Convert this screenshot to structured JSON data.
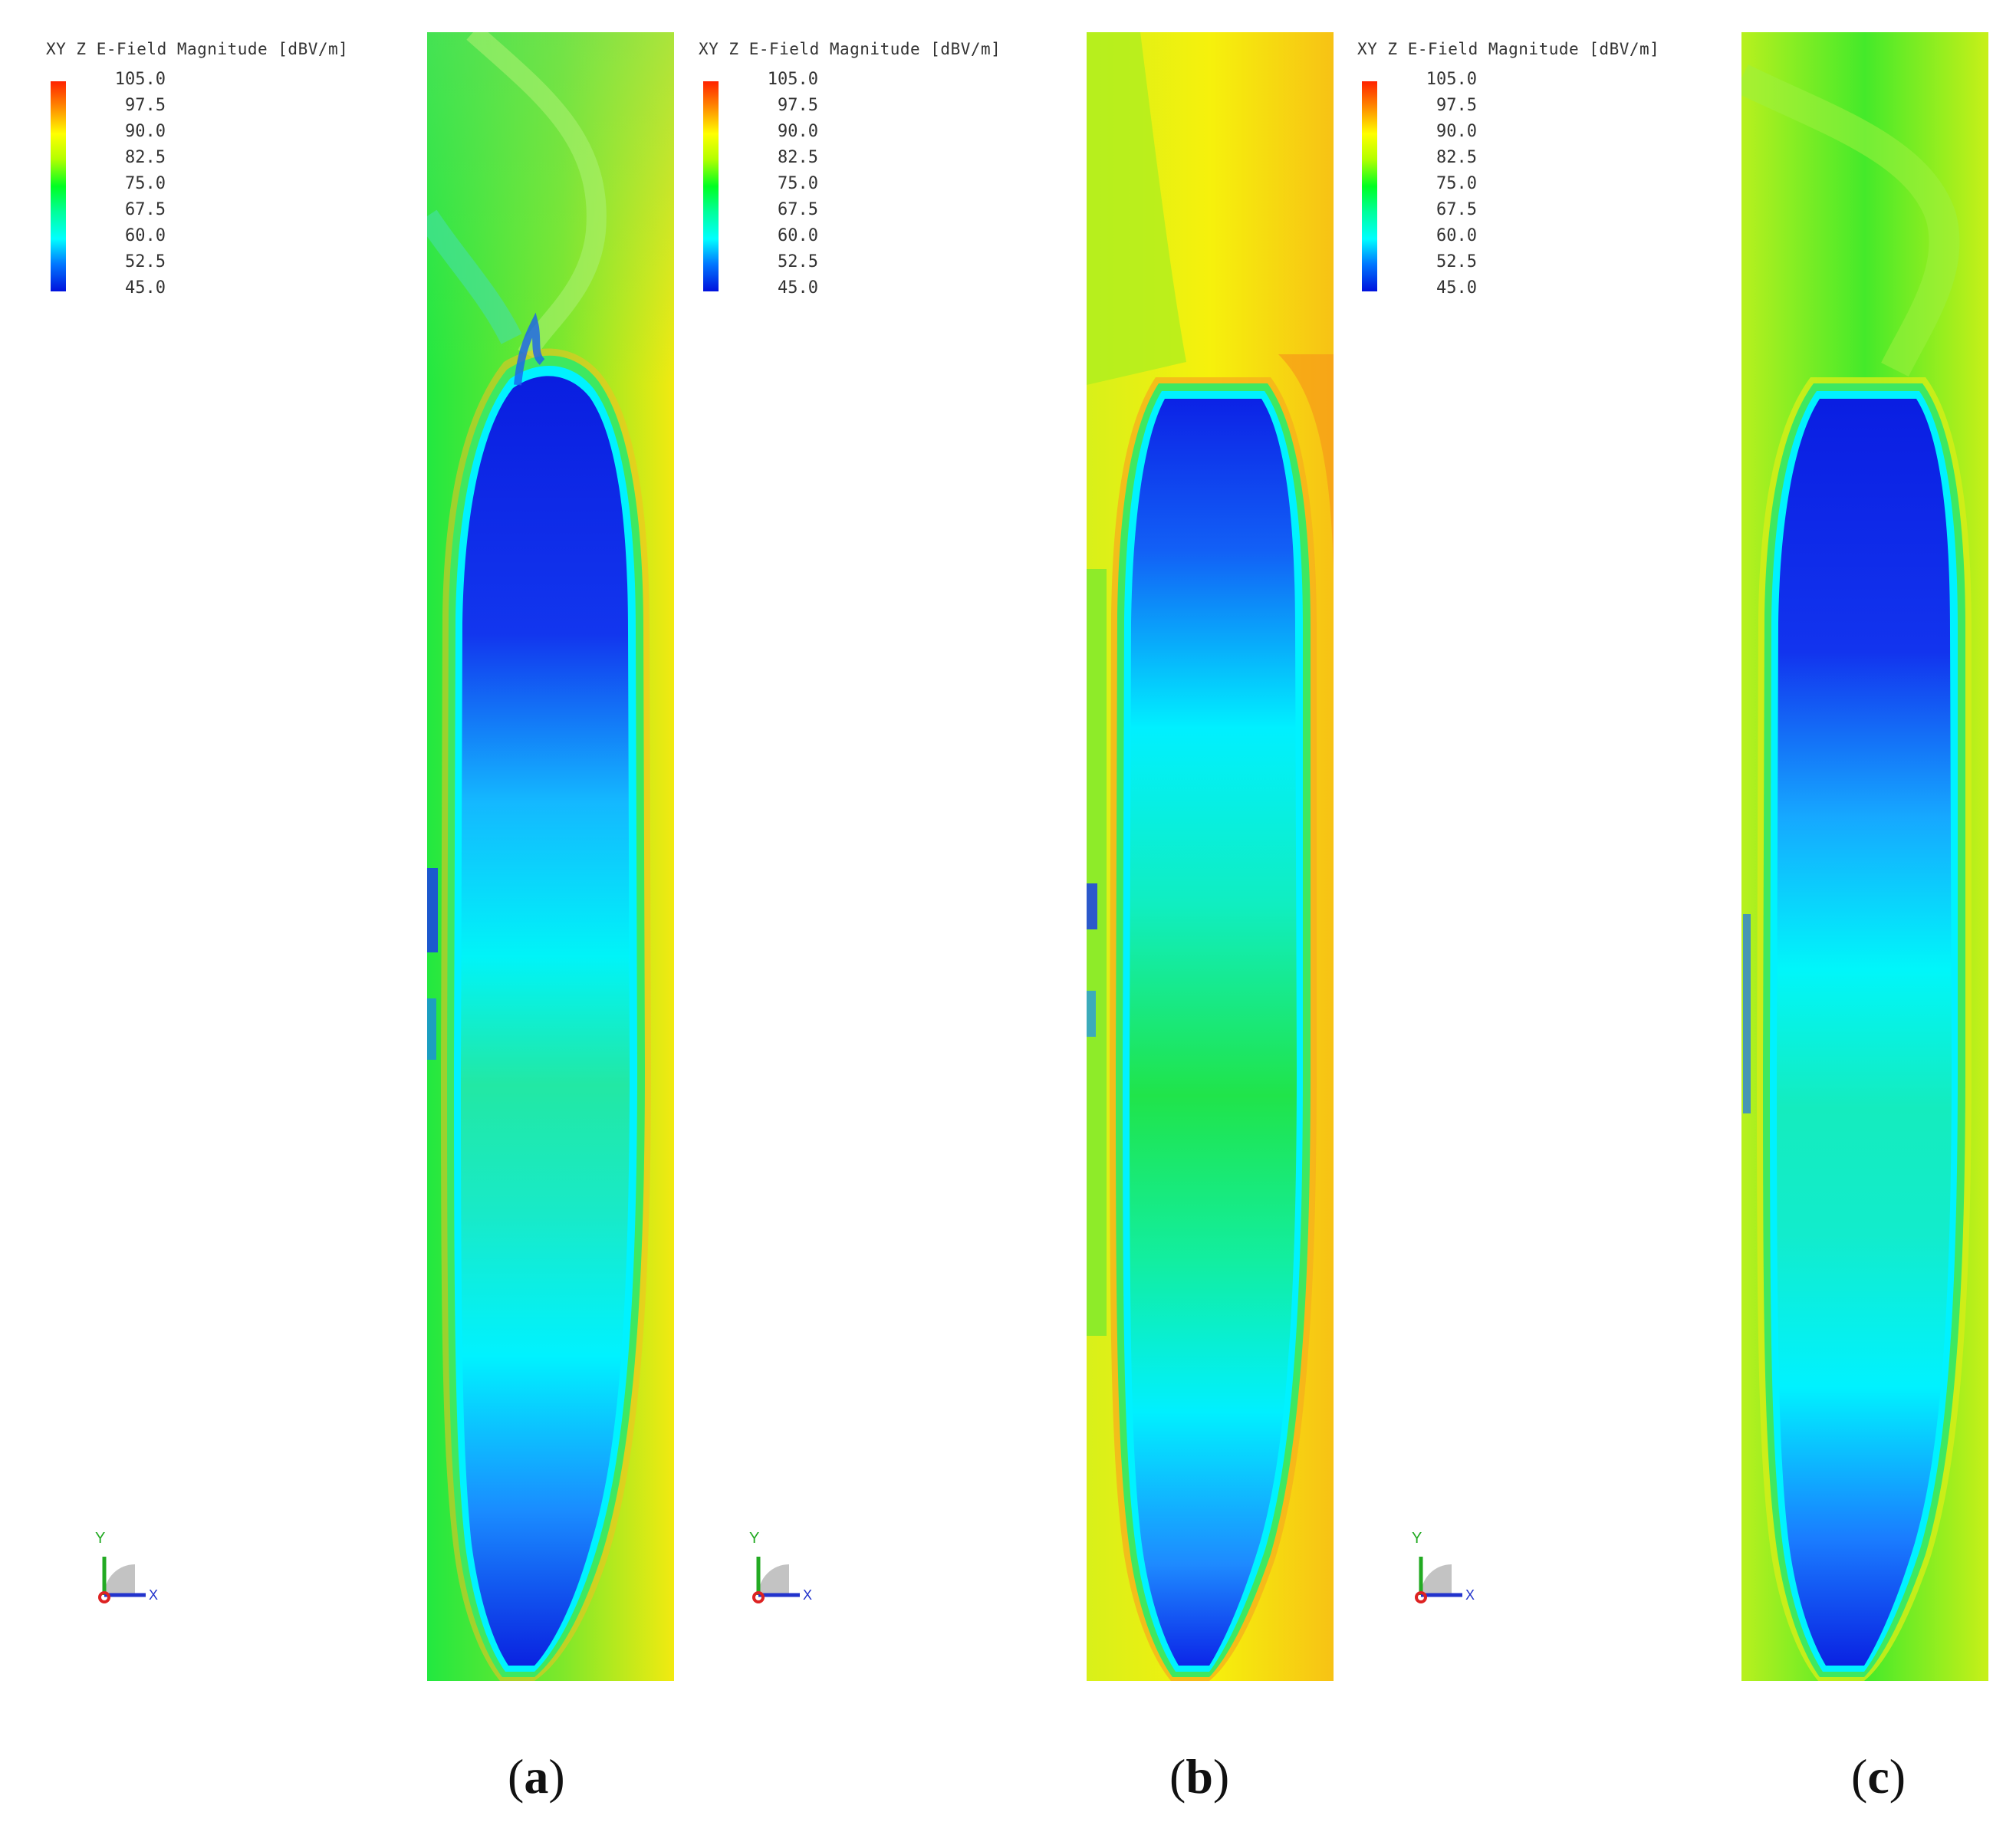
{
  "legend": {
    "title": "XY Z E-Field Magnitude [dBV/m]",
    "ticks": [
      "105.0",
      "97.5",
      "90.0",
      "82.5",
      "75.0",
      "67.5",
      "60.0",
      "52.5",
      "45.0"
    ],
    "colors": [
      "#ff2200",
      "#ff8800",
      "#ffff00",
      "#b4ff00",
      "#00ff22",
      "#00ff99",
      "#00ffff",
      "#0077ff",
      "#0011dd"
    ]
  },
  "axis": {
    "y_label": "Y",
    "x_label": "X"
  },
  "panels": [
    {
      "open": "(",
      "letter": "a",
      "close": ")"
    },
    {
      "open": "(",
      "letter": "b",
      "close": ")"
    },
    {
      "open": "(",
      "letter": "c",
      "close": ")"
    }
  ]
}
